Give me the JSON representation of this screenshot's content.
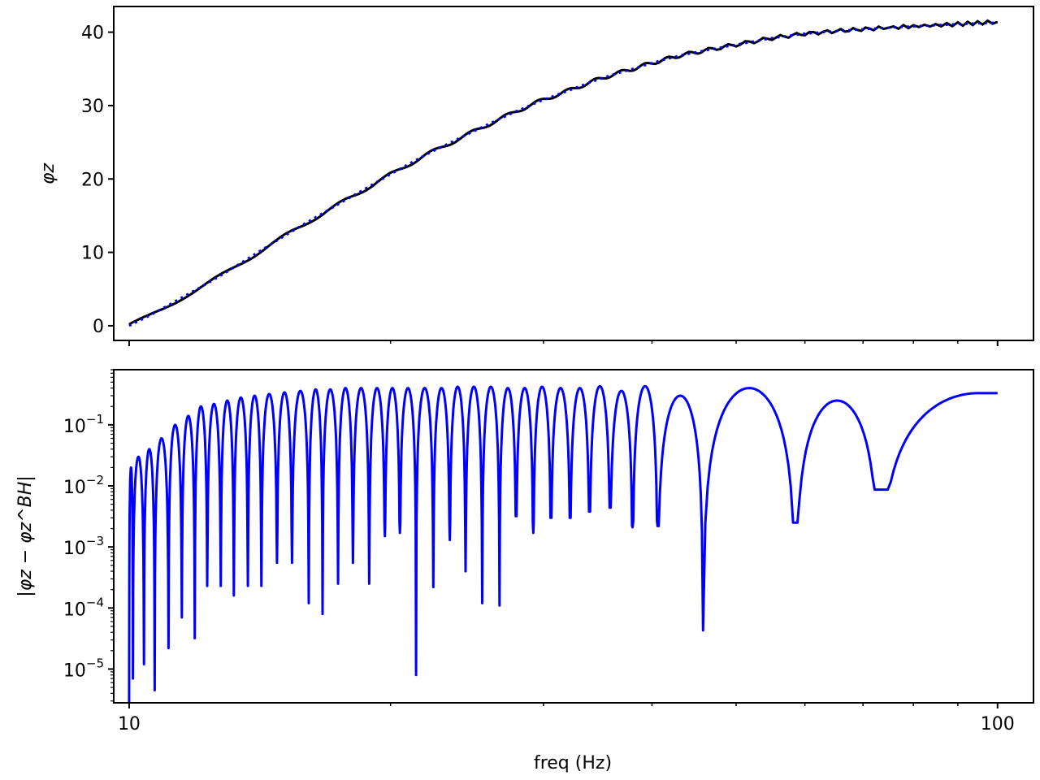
{
  "chart_data": [
    {
      "type": "line",
      "title": "",
      "xlabel": "",
      "ylabel": "φz",
      "xscale": "log",
      "xlim": [
        9.6,
        110
      ],
      "ylim": [
        -2,
        43.5
      ],
      "yticks": [
        0,
        10,
        20,
        30,
        40
      ],
      "ytick_labels": [
        "0",
        "10",
        "20",
        "30",
        "40"
      ],
      "xticks_major": [
        10,
        100
      ],
      "xticks_minor": [
        20,
        30,
        40,
        50,
        60,
        70,
        80,
        90
      ],
      "grid": false,
      "series": [
        {
          "style": "solid",
          "color": "#000000",
          "x": [
            10,
            10.5,
            11,
            11.5,
            12,
            12.5,
            13,
            14,
            15,
            16,
            17,
            18,
            19,
            20,
            21,
            22,
            24,
            26,
            28,
            30,
            32,
            34,
            36,
            38,
            40,
            43,
            46,
            50,
            55,
            60,
            66,
            72,
            80,
            90,
            100
          ],
          "y": [
            0,
            1.2,
            2.5,
            3.8,
            5.0,
            6.2,
            7.4,
            9.8,
            12.0,
            14.0,
            15.8,
            17.5,
            19.1,
            20.6,
            22.0,
            23.3,
            25.5,
            27.5,
            29.3,
            30.8,
            32.0,
            33.2,
            34.2,
            35.0,
            35.8,
            36.8,
            37.5,
            38.3,
            39.2,
            39.8,
            40.2,
            40.5,
            40.8,
            41.1,
            41.4
          ]
        },
        {
          "style": "dotted",
          "color": "#0000ff",
          "x": [
            10,
            10.5,
            11,
            11.5,
            12,
            12.5,
            13,
            14,
            15,
            16,
            17,
            18,
            19,
            20,
            21,
            22,
            24,
            26,
            28,
            30,
            32,
            34,
            36,
            38,
            40,
            43,
            46,
            50,
            55,
            60,
            66,
            72,
            80,
            90,
            100
          ],
          "y": [
            0,
            1.25,
            2.55,
            3.85,
            5.05,
            6.25,
            7.45,
            9.85,
            12.05,
            14.05,
            15.85,
            17.55,
            19.15,
            20.65,
            22.05,
            23.35,
            25.55,
            27.55,
            29.3,
            30.8,
            32.0,
            33.2,
            34.2,
            35.0,
            35.8,
            36.8,
            37.5,
            38.3,
            39.2,
            39.8,
            40.2,
            40.5,
            40.8,
            41.1,
            41.3
          ]
        }
      ]
    },
    {
      "type": "line",
      "title": "",
      "xlabel": "freq (Hz)",
      "ylabel": "|φz − φz^BH|",
      "xscale": "log",
      "yscale": "log",
      "xlim": [
        9.6,
        110
      ],
      "ylim": [
        2.8e-06,
        0.8
      ],
      "yticks": [
        1e-05,
        0.0001,
        0.001,
        0.01,
        0.1
      ],
      "ytick_labels": [
        {
          "base": "10",
          "exp": "−5"
        },
        {
          "base": "10",
          "exp": "−4"
        },
        {
          "base": "10",
          "exp": "−3"
        },
        {
          "base": "10",
          "exp": "−2"
        },
        {
          "base": "10",
          "exp": "−1"
        }
      ],
      "xticks_major": [
        10,
        100
      ],
      "xtick_labels": [
        "10",
        "100"
      ],
      "xticks_minor": [
        20,
        30,
        40,
        50,
        60,
        70,
        80,
        90
      ],
      "grid": false,
      "series": [
        {
          "style": "solid",
          "color": "#0000ff",
          "nulls": [
            {
              "f": 10.0,
              "v": 2.8e-06
            },
            {
              "f": 10.1,
              "v": 7e-06
            },
            {
              "f": 10.4,
              "v": 1.2e-05
            },
            {
              "f": 10.7,
              "v": 4.5e-06
            },
            {
              "f": 11.1,
              "v": 2.2e-05
            },
            {
              "f": 11.5,
              "v": 7e-05
            },
            {
              "f": 11.9,
              "v": 3.2e-05
            },
            {
              "f": 12.3,
              "v": 0.00023
            },
            {
              "f": 12.75,
              "v": 0.00023
            },
            {
              "f": 13.2,
              "v": 0.00016
            },
            {
              "f": 13.7,
              "v": 0.00023
            },
            {
              "f": 14.2,
              "v": 0.00023
            },
            {
              "f": 14.8,
              "v": 0.00055
            },
            {
              "f": 15.4,
              "v": 0.00055
            },
            {
              "f": 16.1,
              "v": 0.00012
            },
            {
              "f": 16.7,
              "v": 8e-05
            },
            {
              "f": 17.4,
              "v": 0.00025
            },
            {
              "f": 18.1,
              "v": 0.00055
            },
            {
              "f": 18.9,
              "v": 0.00025
            },
            {
              "f": 19.7,
              "v": 0.0015
            },
            {
              "f": 20.5,
              "v": 0.0017
            },
            {
              "f": 21.4,
              "v": 8e-06
            },
            {
              "f": 22.4,
              "v": 0.00022
            },
            {
              "f": 23.4,
              "v": 0.0013
            },
            {
              "f": 24.4,
              "v": 0.0004
            },
            {
              "f": 25.5,
              "v": 0.00012
            },
            {
              "f": 26.7,
              "v": 0.00011
            },
            {
              "f": 27.9,
              "v": 0.0032
            },
            {
              "f": 29.2,
              "v": 0.0017
            },
            {
              "f": 30.6,
              "v": 0.003
            },
            {
              "f": 32.2,
              "v": 0.003
            },
            {
              "f": 33.9,
              "v": 0.0038
            },
            {
              "f": 35.8,
              "v": 0.0044
            },
            {
              "f": 38.0,
              "v": 0.0021
            },
            {
              "f": 40.6,
              "v": 0.0022
            },
            {
              "f": 45.8,
              "v": 4.3e-05
            },
            {
              "f": 58.5,
              "v": 0.0025
            },
            {
              "f": 73.0,
              "v": 0.0087
            }
          ],
          "peaks_approx": [
            {
              "f": 10.05,
              "v": 0.002
            },
            {
              "f": 10.25,
              "v": 0.02
            },
            {
              "f": 10.55,
              "v": 0.03
            },
            {
              "f": 10.9,
              "v": 0.04
            },
            {
              "f": 11.3,
              "v": 0.06
            },
            {
              "f": 11.7,
              "v": 0.1
            },
            {
              "f": 12.1,
              "v": 0.14
            },
            {
              "f": 12.5,
              "v": 0.2
            },
            {
              "f": 13.0,
              "v": 0.22
            },
            {
              "f": 13.5,
              "v": 0.25
            },
            {
              "f": 14.0,
              "v": 0.28
            },
            {
              "f": 14.5,
              "v": 0.3
            },
            {
              "f": 15.1,
              "v": 0.32
            },
            {
              "f": 15.8,
              "v": 0.34
            },
            {
              "f": 16.4,
              "v": 0.36
            },
            {
              "f": 17.0,
              "v": 0.38
            },
            {
              "f": 17.7,
              "v": 0.38
            },
            {
              "f": 18.5,
              "v": 0.4
            },
            {
              "f": 19.3,
              "v": 0.4
            },
            {
              "f": 20.1,
              "v": 0.4
            },
            {
              "f": 21.0,
              "v": 0.4
            },
            {
              "f": 21.9,
              "v": 0.4
            },
            {
              "f": 22.9,
              "v": 0.4
            },
            {
              "f": 23.9,
              "v": 0.4
            },
            {
              "f": 24.9,
              "v": 0.42
            },
            {
              "f": 26.1,
              "v": 0.42
            },
            {
              "f": 27.3,
              "v": 0.42
            },
            {
              "f": 28.5,
              "v": 0.4
            },
            {
              "f": 29.9,
              "v": 0.4
            },
            {
              "f": 31.4,
              "v": 0.42
            },
            {
              "f": 33.0,
              "v": 0.4
            },
            {
              "f": 34.8,
              "v": 0.4
            },
            {
              "f": 36.9,
              "v": 0.43
            },
            {
              "f": 39.3,
              "v": 0.36
            },
            {
              "f": 42.5,
              "v": 0.43
            },
            {
              "f": 51.0,
              "v": 0.3
            },
            {
              "f": 52.5,
              "v": 0.4
            },
            {
              "f": 65.0,
              "v": 0.25
            },
            {
              "f": 80.0,
              "v": 0.33
            },
            {
              "f": 100.0,
              "v": 0.18
            }
          ]
        }
      ]
    }
  ]
}
